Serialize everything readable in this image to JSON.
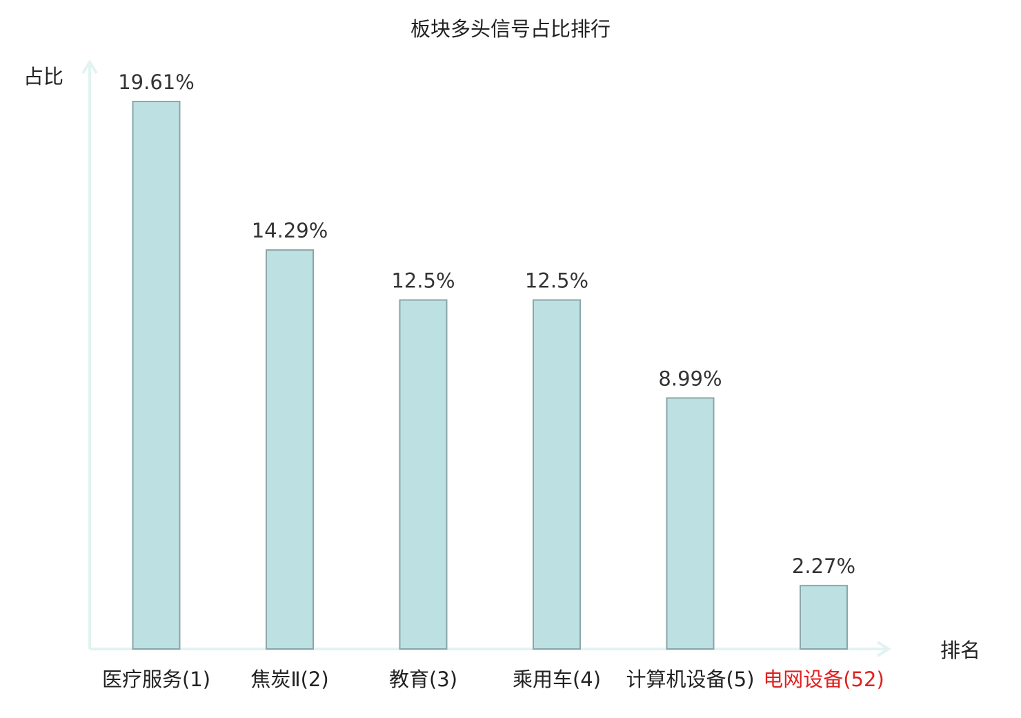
{
  "chart_data": {
    "type": "bar",
    "title": "板块多头信号占比排行",
    "xlabel": "排名",
    "ylabel": "占比",
    "ylim": [
      0,
      20
    ],
    "grid": false,
    "categories": [
      {
        "name": "医疗服务",
        "rank": "(1)",
        "highlight": false
      },
      {
        "name": "焦炭Ⅱ",
        "rank": "(2)",
        "highlight": false
      },
      {
        "name": "教育",
        "rank": "(3)",
        "highlight": false
      },
      {
        "name": "乘用车",
        "rank": "(4)",
        "highlight": false
      },
      {
        "name": "计算机设备",
        "rank": "(5)",
        "highlight": false
      },
      {
        "name": "电网设备",
        "rank": "(52)",
        "highlight": true
      }
    ],
    "values": [
      19.61,
      14.29,
      12.5,
      12.5,
      8.99,
      2.27
    ],
    "value_labels": [
      "19.61%",
      "14.29%",
      "12.5%",
      "12.5%",
      "8.99%",
      "2.27%"
    ]
  },
  "colors": {
    "bar_fill": "#bde0e3",
    "bar_stroke": "#8aa6a8",
    "axis": "#e2f3f1",
    "label_text": "#222222",
    "highlight_text": "#e02020"
  }
}
